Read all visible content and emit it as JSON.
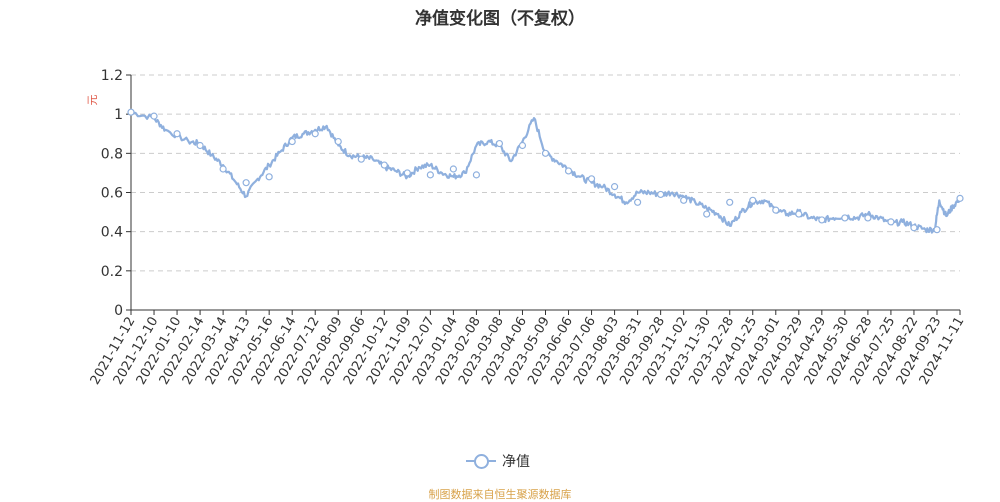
{
  "title": "净值变化图（不复权）",
  "source": "制图数据来自恒生聚源数据库",
  "colors": {
    "line": "#8FB0DE",
    "axis": "#333333",
    "grid": "#cccccc",
    "ylabel": "#E05A4A",
    "source": "#D8A24A"
  },
  "chart_data": {
    "type": "line",
    "title": "净值变化图（不复权）",
    "ylabel": "元",
    "xlabel": "",
    "ylim": [
      0,
      1.2
    ],
    "yticks": [
      "0",
      "0.2",
      "0.4",
      "0.6",
      "0.8",
      "1",
      "1.2"
    ],
    "grid": true,
    "legend_position": "bottom-center",
    "categories": [
      "2021-11-12",
      "2021-12-10",
      "2022-01-10",
      "2022-02-14",
      "2022-03-14",
      "2022-04-13",
      "2022-05-16",
      "2022-06-14",
      "2022-07-12",
      "2022-08-09",
      "2022-09-06",
      "2022-10-12",
      "2022-11-09",
      "2022-12-07",
      "2023-01-04",
      "2023-02-08",
      "2023-03-08",
      "2023-04-06",
      "2023-05-09",
      "2023-06-06",
      "2023-07-06",
      "2023-08-03",
      "2023-08-31",
      "2023-09-28",
      "2023-11-02",
      "2023-11-30",
      "2023-12-28",
      "2024-01-25",
      "2024-03-01",
      "2024-03-29",
      "2024-04-29",
      "2024-05-30",
      "2024-06-28",
      "2024-07-25",
      "2024-08-22",
      "2024-09-23",
      "2024-11-11"
    ],
    "series": [
      {
        "name": "净值",
        "x": [
          0,
          1.5,
          2.5,
          4,
          6,
          8,
          10,
          11.5,
          13,
          15,
          17,
          18,
          19,
          20,
          21,
          21.5,
          22,
          24,
          26,
          27.5,
          29,
          30,
          31,
          32,
          33,
          34,
          35,
          36
        ],
        "points": [
          {
            "x": 0,
            "y": 1.01
          },
          {
            "x": 1,
            "y": 0.98
          },
          {
            "x": 1.5,
            "y": 0.92
          },
          {
            "x": 2.5,
            "y": 0.86
          },
          {
            "x": 3,
            "y": 0.85
          },
          {
            "x": 3.5,
            "y": 0.79
          },
          {
            "x": 4,
            "y": 0.74
          },
          {
            "x": 4.5,
            "y": 0.66
          },
          {
            "x": 5,
            "y": 0.58
          },
          {
            "x": 5.5,
            "y": 0.67
          },
          {
            "x": 6,
            "y": 0.74
          },
          {
            "x": 6.5,
            "y": 0.81
          },
          {
            "x": 7,
            "y": 0.88
          },
          {
            "x": 7.5,
            "y": 0.9
          },
          {
            "x": 8,
            "y": 0.92
          },
          {
            "x": 8.5,
            "y": 0.94
          },
          {
            "x": 9,
            "y": 0.84
          },
          {
            "x": 9.5,
            "y": 0.79
          },
          {
            "x": 10,
            "y": 0.78
          },
          {
            "x": 10.5,
            "y": 0.77
          },
          {
            "x": 11,
            "y": 0.73
          },
          {
            "x": 11.5,
            "y": 0.71
          },
          {
            "x": 12,
            "y": 0.68
          },
          {
            "x": 12.5,
            "y": 0.73
          },
          {
            "x": 13,
            "y": 0.74
          },
          {
            "x": 13.5,
            "y": 0.7
          },
          {
            "x": 14,
            "y": 0.68
          },
          {
            "x": 14.5,
            "y": 0.7
          },
          {
            "x": 15,
            "y": 0.84
          },
          {
            "x": 15.5,
            "y": 0.86
          },
          {
            "x": 16,
            "y": 0.84
          },
          {
            "x": 16.5,
            "y": 0.76
          },
          {
            "x": 17,
            "y": 0.86
          },
          {
            "x": 17.5,
            "y": 0.98
          },
          {
            "x": 18,
            "y": 0.8
          },
          {
            "x": 18.5,
            "y": 0.76
          },
          {
            "x": 19,
            "y": 0.72
          },
          {
            "x": 19.5,
            "y": 0.68
          },
          {
            "x": 20,
            "y": 0.65
          },
          {
            "x": 20.5,
            "y": 0.63
          },
          {
            "x": 21,
            "y": 0.59
          },
          {
            "x": 21.5,
            "y": 0.55
          },
          {
            "x": 22,
            "y": 0.6
          },
          {
            "x": 22.5,
            "y": 0.6
          },
          {
            "x": 23,
            "y": 0.59
          },
          {
            "x": 23.5,
            "y": 0.6
          },
          {
            "x": 24,
            "y": 0.58
          },
          {
            "x": 24.5,
            "y": 0.55
          },
          {
            "x": 25,
            "y": 0.52
          },
          {
            "x": 25.5,
            "y": 0.49
          },
          {
            "x": 26,
            "y": 0.43
          },
          {
            "x": 26.5,
            "y": 0.5
          },
          {
            "x": 27,
            "y": 0.55
          },
          {
            "x": 27.5,
            "y": 0.56
          },
          {
            "x": 28,
            "y": 0.51
          },
          {
            "x": 28.5,
            "y": 0.49
          },
          {
            "x": 29,
            "y": 0.5
          },
          {
            "x": 29.5,
            "y": 0.47
          },
          {
            "x": 30,
            "y": 0.46
          },
          {
            "x": 30.5,
            "y": 0.47
          },
          {
            "x": 31,
            "y": 0.48
          },
          {
            "x": 31.5,
            "y": 0.47
          },
          {
            "x": 32,
            "y": 0.49
          },
          {
            "x": 32.5,
            "y": 0.47
          },
          {
            "x": 33,
            "y": 0.44
          },
          {
            "x": 33.5,
            "y": 0.45
          },
          {
            "x": 34,
            "y": 0.43
          },
          {
            "x": 34.5,
            "y": 0.41
          },
          {
            "x": 34.9,
            "y": 0.41
          },
          {
            "x": 35.1,
            "y": 0.56
          },
          {
            "x": 35.4,
            "y": 0.48
          },
          {
            "x": 35.7,
            "y": 0.53
          },
          {
            "x": 36,
            "y": 0.57
          }
        ],
        "markers": [
          {
            "x": 0,
            "y": 1.01
          },
          {
            "x": 1,
            "y": 0.99
          },
          {
            "x": 2,
            "y": 0.9
          },
          {
            "x": 3,
            "y": 0.84
          },
          {
            "x": 4,
            "y": 0.72
          },
          {
            "x": 5,
            "y": 0.65
          },
          {
            "x": 6,
            "y": 0.68
          },
          {
            "x": 7,
            "y": 0.86
          },
          {
            "x": 8,
            "y": 0.9
          },
          {
            "x": 9,
            "y": 0.86
          },
          {
            "x": 10,
            "y": 0.77
          },
          {
            "x": 11,
            "y": 0.74
          },
          {
            "x": 12,
            "y": 0.7
          },
          {
            "x": 13,
            "y": 0.69
          },
          {
            "x": 14,
            "y": 0.72
          },
          {
            "x": 15,
            "y": 0.69
          },
          {
            "x": 16,
            "y": 0.85
          },
          {
            "x": 17,
            "y": 0.84
          },
          {
            "x": 18,
            "y": 0.8
          },
          {
            "x": 19,
            "y": 0.71
          },
          {
            "x": 20,
            "y": 0.67
          },
          {
            "x": 21,
            "y": 0.63
          },
          {
            "x": 22,
            "y": 0.55
          },
          {
            "x": 23,
            "y": 0.59
          },
          {
            "x": 24,
            "y": 0.56
          },
          {
            "x": 25,
            "y": 0.49
          },
          {
            "x": 26,
            "y": 0.55
          },
          {
            "x": 27,
            "y": 0.56
          },
          {
            "x": 28,
            "y": 0.51
          },
          {
            "x": 29,
            "y": 0.49
          },
          {
            "x": 30,
            "y": 0.46
          },
          {
            "x": 31,
            "y": 0.47
          },
          {
            "x": 32,
            "y": 0.47
          },
          {
            "x": 33,
            "y": 0.45
          },
          {
            "x": 34,
            "y": 0.42
          },
          {
            "x": 35,
            "y": 0.41
          },
          {
            "x": 36,
            "y": 0.57
          }
        ]
      }
    ]
  }
}
